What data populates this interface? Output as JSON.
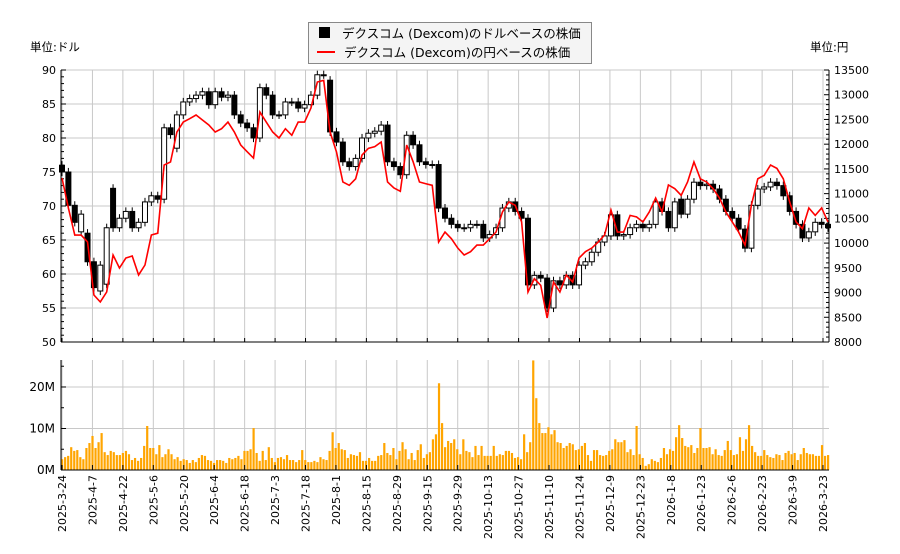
{
  "legend": {
    "usd_label": "デクスコム (Dexcom)のドルベースの株価",
    "jpy_label": "デクスコム (Dexcom)の円ベースの株価"
  },
  "units": {
    "left": "単位:ドル",
    "right": "単位:円"
  },
  "colors": {
    "candle_up": "#ffffff",
    "candle_down": "#000000",
    "yen_line": "#ff0000",
    "volume": "#ffa500",
    "grid": "#c8c8c8"
  },
  "chart_data": [
    {
      "type": "candlestick+line",
      "x_start": "2025-3-24",
      "x_end": "2026-3-23",
      "left_axis": {
        "ylim": [
          50,
          90
        ],
        "ticks": [
          50,
          55,
          60,
          65,
          70,
          75,
          80,
          85,
          90
        ]
      },
      "right_axis": {
        "ylim": [
          8000,
          13500
        ],
        "ticks": [
          8000,
          8500,
          9000,
          9500,
          10000,
          10500,
          11000,
          11500,
          12000,
          12500,
          13000,
          13500
        ]
      },
      "grid": true,
      "legend_position": "top-center",
      "usd_candles_open_close": [
        [
          76.0,
          75.0
        ],
        [
          75.0,
          70.1
        ],
        [
          70.1,
          67.6
        ],
        [
          66.2,
          68.8
        ],
        [
          66.0,
          61.8
        ],
        [
          61.8,
          58.0
        ],
        [
          57.5,
          61.3
        ],
        [
          58.5,
          66.8
        ],
        [
          72.6,
          66.8
        ],
        [
          66.8,
          68.2
        ],
        [
          68.2,
          69.2
        ],
        [
          69.2,
          66.8
        ],
        [
          66.8,
          67.6
        ],
        [
          67.6,
          70.6
        ],
        [
          70.6,
          71.5
        ],
        [
          71.5,
          71.0
        ],
        [
          71.0,
          81.5
        ],
        [
          81.5,
          80.5
        ],
        [
          78.5,
          83.4
        ],
        [
          83.4,
          85.3
        ],
        [
          85.3,
          85.8
        ],
        [
          85.8,
          86.3
        ],
        [
          86.3,
          86.8
        ],
        [
          86.8,
          84.9
        ],
        [
          84.9,
          86.8
        ],
        [
          86.8,
          86.0
        ],
        [
          86.0,
          86.3
        ],
        [
          86.3,
          83.4
        ],
        [
          83.4,
          82.2
        ],
        [
          82.2,
          81.5
        ],
        [
          81.5,
          80.0
        ],
        [
          80.0,
          87.4
        ],
        [
          87.4,
          86.3
        ],
        [
          86.3,
          83.4
        ],
        [
          83.4,
          83.4
        ],
        [
          83.4,
          85.3
        ],
        [
          85.3,
          85.3
        ],
        [
          85.3,
          84.4
        ],
        [
          84.4,
          84.9
        ],
        [
          84.9,
          86.3
        ],
        [
          86.3,
          89.3
        ],
        [
          89.3,
          89.3
        ],
        [
          88.5,
          80.9
        ],
        [
          80.9,
          79.4
        ],
        [
          79.4,
          76.5
        ],
        [
          76.5,
          75.8
        ],
        [
          75.8,
          77.0
        ],
        [
          77.0,
          80.0
        ],
        [
          80.0,
          80.7
        ],
        [
          80.7,
          81.0
        ],
        [
          81.0,
          81.9
        ],
        [
          81.9,
          76.5
        ],
        [
          76.5,
          75.8
        ],
        [
          75.8,
          74.6
        ],
        [
          74.6,
          80.4
        ],
        [
          80.4,
          79.0
        ],
        [
          79.0,
          76.5
        ],
        [
          76.5,
          76.1
        ],
        [
          76.1,
          76.1
        ],
        [
          76.1,
          69.7
        ],
        [
          69.7,
          68.2
        ],
        [
          68.2,
          67.3
        ],
        [
          67.3,
          66.8
        ],
        [
          66.8,
          66.8
        ],
        [
          66.8,
          67.3
        ],
        [
          67.3,
          67.3
        ],
        [
          67.3,
          65.3
        ],
        [
          65.3,
          65.8
        ],
        [
          65.8,
          66.8
        ],
        [
          66.8,
          69.7
        ],
        [
          69.7,
          70.6
        ],
        [
          70.6,
          69.2
        ],
        [
          69.2,
          68.2
        ],
        [
          68.2,
          58.4
        ],
        [
          58.4,
          59.8
        ],
        [
          59.8,
          59.4
        ],
        [
          59.4,
          55.0
        ],
        [
          55.0,
          59.0
        ],
        [
          59.0,
          58.4
        ],
        [
          58.4,
          59.8
        ],
        [
          59.8,
          58.4
        ],
        [
          58.4,
          61.3
        ],
        [
          61.3,
          61.8
        ],
        [
          61.8,
          63.2
        ],
        [
          63.2,
          64.7
        ],
        [
          64.7,
          65.6
        ],
        [
          65.6,
          68.7
        ],
        [
          68.7,
          65.6
        ],
        [
          65.6,
          65.8
        ],
        [
          65.8,
          66.8
        ],
        [
          66.8,
          67.3
        ],
        [
          67.3,
          66.8
        ],
        [
          66.8,
          67.3
        ],
        [
          67.3,
          70.6
        ],
        [
          70.6,
          69.2
        ],
        [
          69.2,
          66.8
        ],
        [
          66.8,
          70.6
        ],
        [
          71.0,
          68.8
        ],
        [
          68.8,
          71.0
        ],
        [
          71.0,
          73.5
        ],
        [
          73.5,
          73.0
        ],
        [
          73.0,
          73.2
        ],
        [
          73.2,
          72.5
        ],
        [
          72.5,
          71.0
        ],
        [
          71.0,
          69.2
        ],
        [
          69.2,
          68.2
        ],
        [
          68.2,
          66.6
        ],
        [
          66.6,
          63.8
        ],
        [
          63.8,
          70.1
        ],
        [
          70.1,
          72.5
        ],
        [
          72.5,
          72.8
        ],
        [
          72.8,
          73.5
        ],
        [
          73.5,
          73.0
        ],
        [
          73.0,
          71.5
        ],
        [
          71.5,
          69.2
        ],
        [
          69.2,
          67.3
        ],
        [
          67.3,
          65.3
        ],
        [
          65.3,
          66.2
        ],
        [
          66.2,
          67.6
        ],
        [
          67.6,
          67.3
        ],
        [
          67.3,
          66.8
        ]
      ],
      "jpy_close": [
        11316,
        10710,
        10163,
        10163,
        10022,
        8950,
        8809,
        9011,
        9759,
        9496,
        9698,
        9739,
        9355,
        9557,
        10163,
        10200,
        11579,
        11640,
        12246,
        12448,
        12515,
        12590,
        12490,
        12388,
        12246,
        12313,
        12448,
        12246,
        11983,
        11849,
        11720,
        12650,
        12448,
        12246,
        12125,
        12313,
        12180,
        12448,
        12448,
        12731,
        13257,
        13290,
        12246,
        11842,
        11235,
        11168,
        11300,
        11781,
        11916,
        11950,
        12044,
        11235,
        11114,
        11047,
        11983,
        11646,
        11235,
        11200,
        11168,
        10022,
        10224,
        10090,
        9900,
        9759,
        9826,
        9960,
        9960,
        10090,
        10224,
        10629,
        10831,
        10764,
        10427,
        9011,
        9280,
        9145,
        8485,
        9213,
        9011,
        9355,
        9213,
        9698,
        9826,
        9900,
        10022,
        10163,
        10669,
        10224,
        10224,
        10560,
        10530,
        10427,
        10630,
        10912,
        10630,
        11175,
        11100,
        10966,
        11235,
        11640,
        11300,
        11235,
        11100,
        10912,
        10630,
        10427,
        10224,
        9960,
        10770,
        11300,
        11370,
        11579,
        11510,
        11300,
        10830,
        10427,
        10290,
        10710,
        10560,
        10710,
        10427
      ]
    },
    {
      "type": "bar",
      "ylim": [
        0,
        26.5
      ],
      "ytick_labels": [
        "0M",
        "10M",
        "20M"
      ],
      "ytick_values": [
        0,
        10,
        20
      ],
      "unit": "M",
      "grid": true,
      "volume_millions": [
        2.6,
        3.1,
        3.4,
        5.5,
        4.6,
        4.8,
        3.1,
        2.6,
        5.3,
        6.5,
        8.2,
        5.3,
        6.7,
        8.9,
        4.3,
        3.6,
        4.6,
        4.3,
        3.6,
        3.6,
        4.1,
        4.6,
        3.8,
        2.4,
        2.9,
        2.2,
        2.9,
        5.8,
        10.6,
        5.3,
        5.3,
        3.8,
        6.0,
        3.1,
        3.8,
        5.0,
        3.8,
        2.6,
        3.1,
        2.2,
        2.6,
        2.4,
        1.7,
        2.4,
        1.9,
        2.9,
        3.6,
        3.4,
        2.4,
        2.2,
        1.7,
        2.4,
        2.4,
        2.2,
        1.7,
        2.9,
        2.6,
        2.9,
        3.4,
        2.6,
        4.6,
        4.6,
        5.0,
        10.1,
        4.1,
        2.2,
        4.6,
        2.4,
        5.5,
        2.9,
        1.9,
        2.9,
        3.1,
        2.6,
        3.6,
        2.4,
        2.4,
        1.9,
        2.4,
        4.8,
        2.4,
        1.9,
        1.9,
        2.2,
        1.9,
        3.1,
        2.6,
        2.4,
        4.6,
        9.1,
        5.3,
        6.5,
        5.0,
        4.8,
        2.9,
        3.8,
        3.6,
        3.4,
        4.3,
        2.2,
        2.2,
        2.9,
        2.2,
        2.2,
        3.4,
        3.6,
        6.5,
        4.1,
        3.6,
        5.3,
        2.6,
        4.6,
        6.7,
        5.0,
        2.6,
        4.1,
        2.4,
        4.8,
        6.2,
        2.9,
        3.8,
        4.3,
        7.4,
        8.6,
        20.9,
        11.3,
        5.5,
        7.0,
        6.5,
        7.4,
        5.0,
        3.8,
        7.4,
        4.6,
        4.3,
        3.1,
        5.8,
        3.6,
        5.8,
        3.4,
        3.4,
        3.4,
        5.8,
        3.4,
        3.8,
        3.6,
        4.6,
        4.6,
        4.1,
        2.9,
        3.1,
        2.6,
        8.6,
        4.3,
        6.7,
        26.4,
        17.3,
        11.3,
        8.9,
        8.9,
        10.3,
        8.6,
        9.6,
        6.7,
        6.5,
        5.3,
        5.8,
        6.5,
        6.2,
        4.8,
        5.0,
        5.8,
        6.5,
        3.6,
        2.2,
        4.8,
        4.8,
        3.6,
        3.4,
        3.6,
        4.6,
        5.0,
        7.4,
        6.7,
        6.7,
        7.2,
        4.3,
        5.0,
        3.6,
        10.6,
        3.8,
        2.9,
        1.0,
        1.4,
        2.6,
        2.2,
        1.9,
        2.9,
        5.3,
        3.8,
        5.0,
        4.6,
        7.9,
        10.8,
        7.7,
        5.8,
        5.5,
        6.0,
        4.1,
        5.3,
        10.1,
        5.3,
        5.3,
        5.5,
        3.8,
        5.0,
        3.6,
        3.4,
        4.8,
        7.0,
        4.8,
        3.6,
        3.8,
        7.9,
        4.6,
        7.4,
        10.8,
        5.8,
        4.3,
        3.4,
        3.4,
        4.8,
        3.6,
        3.1,
        2.9,
        3.8,
        3.6,
        2.4,
        4.1,
        4.6,
        3.8,
        4.1,
        2.4,
        3.8,
        5.3,
        4.1,
        3.8,
        3.8,
        3.4,
        3.4,
        6.0,
        3.4,
        3.6
      ],
      "xtick_labels": [
        "2025-3-24",
        "2025-4-7",
        "2025-4-22",
        "2025-5-6",
        "2025-5-20",
        "2025-6-4",
        "2025-6-18",
        "2025-7-3",
        "2025-7-18",
        "2025-8-1",
        "2025-8-15",
        "2025-8-29",
        "2025-9-15",
        "2025-9-29",
        "2025-10-13",
        "2025-10-27",
        "2025-11-10",
        "2025-11-24",
        "2025-12-9",
        "2025-12-23",
        "2026-1-8",
        "2026-1-23",
        "2026-2-6",
        "2026-2-23",
        "2026-3-9",
        "2026-3-23"
      ]
    }
  ]
}
